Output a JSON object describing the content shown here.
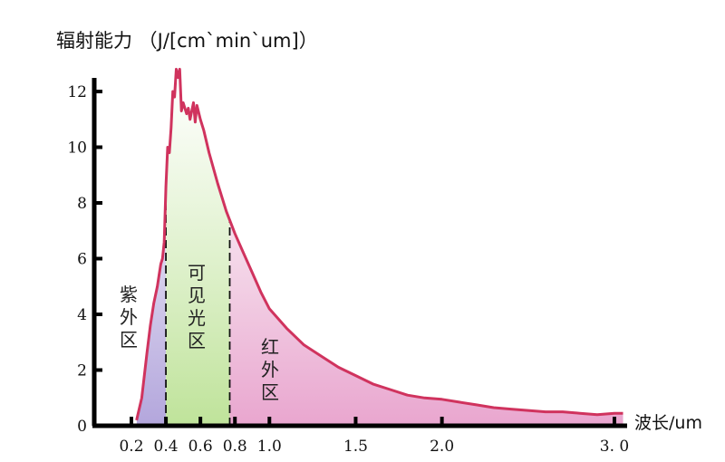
{
  "chart_data": {
    "type": "area",
    "ylabel": "辐射能力 （J/[cm`min`um]）",
    "xlabel": "波长/um",
    "xlim": [
      0.2,
      3.0
    ],
    "ylim": [
      0,
      12
    ],
    "yticks": [
      {
        "value": 0,
        "label": "0"
      },
      {
        "value": 2,
        "label": "2"
      },
      {
        "value": 4,
        "label": "4"
      },
      {
        "value": 6,
        "label": "6"
      },
      {
        "value": 8,
        "label": "8"
      },
      {
        "value": 10,
        "label": "10"
      },
      {
        "value": 12,
        "label": "12"
      }
    ],
    "xticks": [
      {
        "value": 0.2,
        "label": "0.2"
      },
      {
        "value": 0.4,
        "label": "0.4"
      },
      {
        "value": 0.6,
        "label": "0.6"
      },
      {
        "value": 0.8,
        "label": "0.8"
      },
      {
        "value": 1.0,
        "label": "1.0"
      },
      {
        "value": 1.5,
        "label": "1.5"
      },
      {
        "value": 2.0,
        "label": "2.0"
      },
      {
        "value": 3.0,
        "label": "3. 0"
      }
    ],
    "series": [
      {
        "x": [
          0.23,
          0.26,
          0.29,
          0.31,
          0.33,
          0.35,
          0.36,
          0.37,
          0.38,
          0.39,
          0.4,
          0.41,
          0.42,
          0.43,
          0.44,
          0.45,
          0.46,
          0.47,
          0.48,
          0.49,
          0.5,
          0.51,
          0.52,
          0.53,
          0.54,
          0.55,
          0.56,
          0.57,
          0.58,
          0.6,
          0.62,
          0.65,
          0.7,
          0.75,
          0.8,
          0.85,
          0.9,
          0.95,
          1.0,
          1.1,
          1.2,
          1.3,
          1.4,
          1.5,
          1.6,
          1.7,
          1.8,
          1.9,
          2.0,
          2.1,
          2.2,
          2.3,
          2.4,
          2.5,
          2.6,
          2.7,
          2.8,
          2.9,
          3.0,
          3.05
        ],
        "y": [
          0.2,
          1.0,
          2.6,
          3.6,
          4.4,
          5.0,
          5.4,
          5.8,
          6.0,
          6.6,
          8.6,
          10.0,
          9.8,
          10.7,
          12.0,
          11.8,
          12.8,
          12.5,
          12.8,
          11.3,
          11.6,
          11.4,
          11.2,
          11.4,
          11.0,
          11.3,
          11.6,
          10.9,
          11.5,
          11.0,
          10.6,
          9.8,
          8.7,
          7.7,
          6.9,
          6.2,
          5.5,
          4.8,
          4.2,
          3.5,
          2.9,
          2.5,
          2.1,
          1.8,
          1.5,
          1.3,
          1.1,
          1.0,
          0.95,
          0.85,
          0.75,
          0.65,
          0.6,
          0.55,
          0.5,
          0.5,
          0.45,
          0.4,
          0.45,
          0.45
        ]
      }
    ],
    "regions": [
      {
        "label": "紫\n外\n区",
        "from": 0.23,
        "to": 0.4,
        "color": "#b3a6dc"
      },
      {
        "label": "可\n见\n光\n区",
        "from": 0.4,
        "to": 0.77,
        "color": "#bfe39a"
      },
      {
        "label": "红\n外\n区",
        "from": 0.77,
        "to": 3.05,
        "color": "#e9a6cf"
      }
    ],
    "line_color": "#d0335e",
    "grid": false
  }
}
